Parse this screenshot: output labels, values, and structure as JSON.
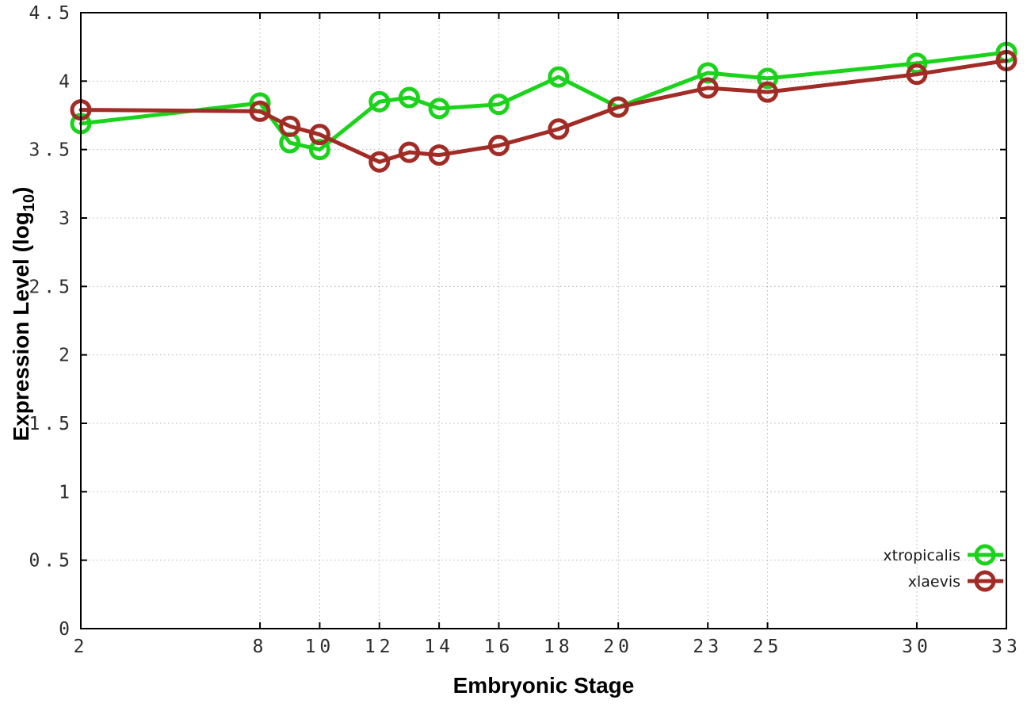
{
  "figure": {
    "background": "#ffffff",
    "border_color": "#000000",
    "grid_color": "#b4b4b4",
    "tick_label_color": "#2d2d2d",
    "title_color": "#000000"
  },
  "chart_data": {
    "type": "line",
    "title": "",
    "xlabel": "Embryonic Stage",
    "ylabel": {
      "prefix": "Expression Level (log",
      "sub": "10",
      "suffix": ")"
    },
    "xlim": [
      2,
      33
    ],
    "ylim": [
      0,
      4.5
    ],
    "x_ticks": [
      2,
      8,
      10,
      12,
      14,
      16,
      18,
      20,
      23,
      25,
      30,
      33
    ],
    "x_tick_labels": [
      "2",
      "8",
      "10",
      "12",
      "14",
      "16",
      "18",
      "20",
      "23",
      "25",
      "30",
      "33"
    ],
    "y_ticks": [
      0,
      0.5,
      1,
      1.5,
      2,
      2.5,
      3,
      3.5,
      4,
      4.5
    ],
    "y_tick_labels": [
      "0",
      "0.5",
      "1",
      "1.5",
      "2",
      "2.5",
      "3",
      "3.5",
      "4",
      "4.5"
    ],
    "grid": true,
    "legend_position": "bottom-right",
    "series": [
      {
        "name": "xtropicalis",
        "color": "#1bd31b",
        "marker": "open-circle",
        "x": [
          2,
          8,
          9,
          10,
          12,
          13,
          14,
          16,
          18,
          20,
          23,
          25,
          30,
          33
        ],
        "y": [
          3.69,
          3.84,
          3.55,
          3.5,
          3.85,
          3.88,
          3.8,
          3.83,
          4.03,
          3.81,
          4.06,
          4.02,
          4.13,
          4.21
        ]
      },
      {
        "name": "xlaevis",
        "color": "#a12c26",
        "marker": "open-circle",
        "x": [
          2,
          8,
          9,
          10,
          12,
          13,
          14,
          16,
          18,
          20,
          23,
          25,
          30,
          33
        ],
        "y": [
          3.79,
          3.78,
          3.67,
          3.61,
          3.41,
          3.48,
          3.46,
          3.53,
          3.65,
          3.81,
          3.95,
          3.92,
          4.05,
          4.15
        ]
      }
    ]
  }
}
